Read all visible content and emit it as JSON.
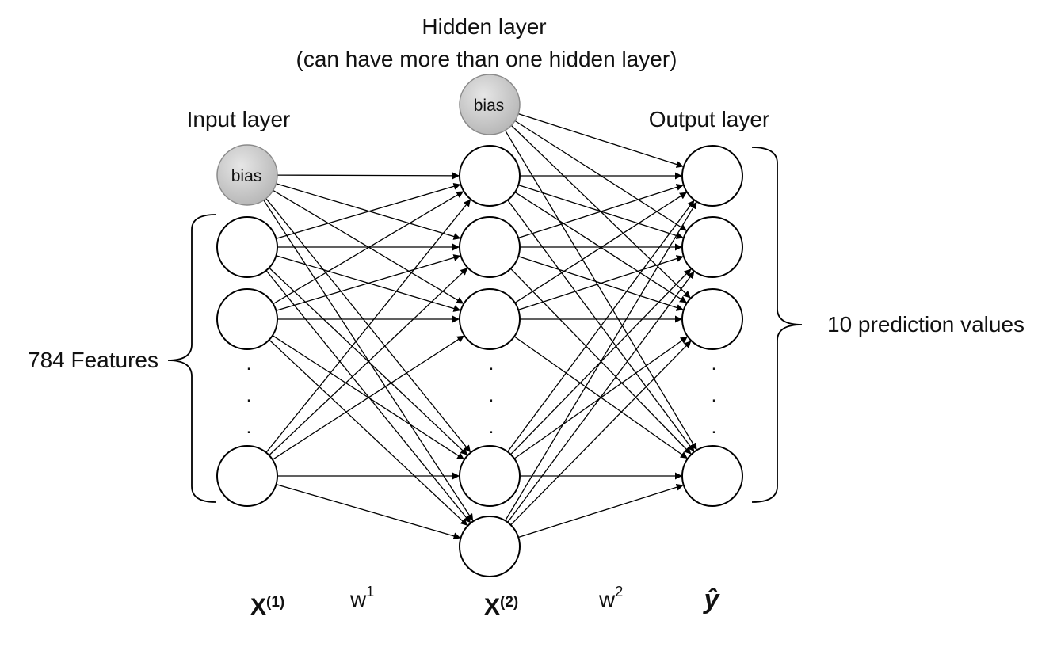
{
  "titles": {
    "hidden_layer": "Hidden layer",
    "hidden_layer_note": "(can have more than one hidden layer)",
    "input_layer": "Input layer",
    "output_layer": "Output layer"
  },
  "bias_label": "bias",
  "brace_labels": {
    "features": "784 Features",
    "predictions": "10 prediction values"
  },
  "ellipsis": ".",
  "bottom_labels": {
    "x1_base": "X",
    "x1_sup": "(1)",
    "w1_base": "w",
    "w1_sup": "1",
    "x2_base": "X",
    "x2_sup": "(2)",
    "w2_base": "w",
    "w2_sup": "2",
    "yhat": "ŷ"
  }
}
